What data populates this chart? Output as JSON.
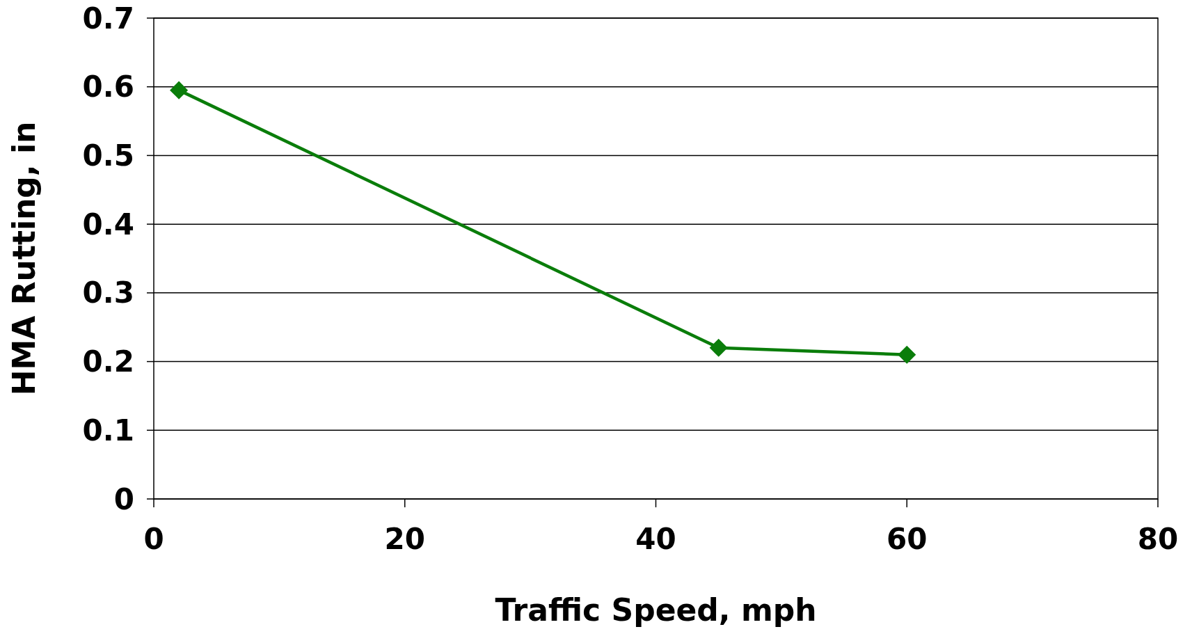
{
  "chart_data": {
    "type": "line",
    "xlabel": "Traffic Speed, mph",
    "ylabel": "HMA Rutting, in",
    "x": [
      2,
      45,
      60
    ],
    "series": [
      {
        "color": "#0a7d0a",
        "values": [
          0.595,
          0.22,
          0.21
        ]
      }
    ],
    "xlim": [
      0,
      80
    ],
    "xticks": [
      0,
      20,
      40,
      60,
      80
    ],
    "ylim": [
      0,
      0.7
    ],
    "yticks": [
      0,
      0.1,
      0.2,
      0.3,
      0.4,
      0.5,
      0.6,
      0.7
    ],
    "grid": "y",
    "marker": "diamond",
    "line_style": "solid"
  }
}
